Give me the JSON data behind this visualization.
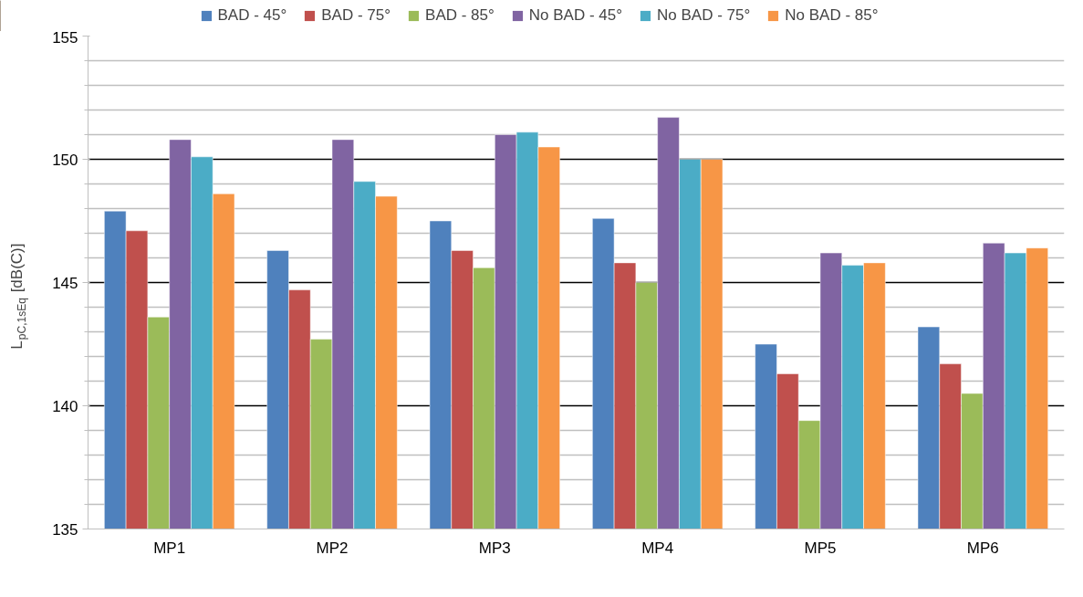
{
  "chart_data": {
    "type": "bar",
    "ylabel": "L$_{pC,1sEq}$ [dB(C)]",
    "categories": [
      "MP1",
      "MP2",
      "MP3",
      "MP4",
      "MP5",
      "MP6"
    ],
    "ylim": [
      135,
      155
    ],
    "yticks": [
      135,
      140,
      145,
      150,
      155
    ],
    "grid": "y",
    "legend": "top",
    "series": [
      {
        "name": "BAD - 45°",
        "color": "#4f81bd",
        "values": [
          147.9,
          146.3,
          147.5,
          147.6,
          142.5,
          143.2
        ]
      },
      {
        "name": "BAD - 75°",
        "color": "#c0504d",
        "values": [
          147.1,
          144.7,
          146.3,
          145.8,
          141.3,
          141.7
        ]
      },
      {
        "name": "BAD - 85°",
        "color": "#9bbb59",
        "values": [
          143.6,
          142.7,
          145.6,
          145.0,
          139.4,
          140.5
        ]
      },
      {
        "name": "No BAD - 45°",
        "color": "#8064a2",
        "values": [
          150.8,
          150.8,
          151.0,
          151.7,
          146.2,
          146.6
        ]
      },
      {
        "name": "No BAD - 75°",
        "color": "#4bacc6",
        "values": [
          150.1,
          149.1,
          151.1,
          150.0,
          145.7,
          146.2
        ]
      },
      {
        "name": "No BAD - 85°",
        "color": "#f79646",
        "values": [
          148.6,
          148.5,
          150.5,
          150.0,
          145.8,
          146.4
        ]
      }
    ]
  }
}
